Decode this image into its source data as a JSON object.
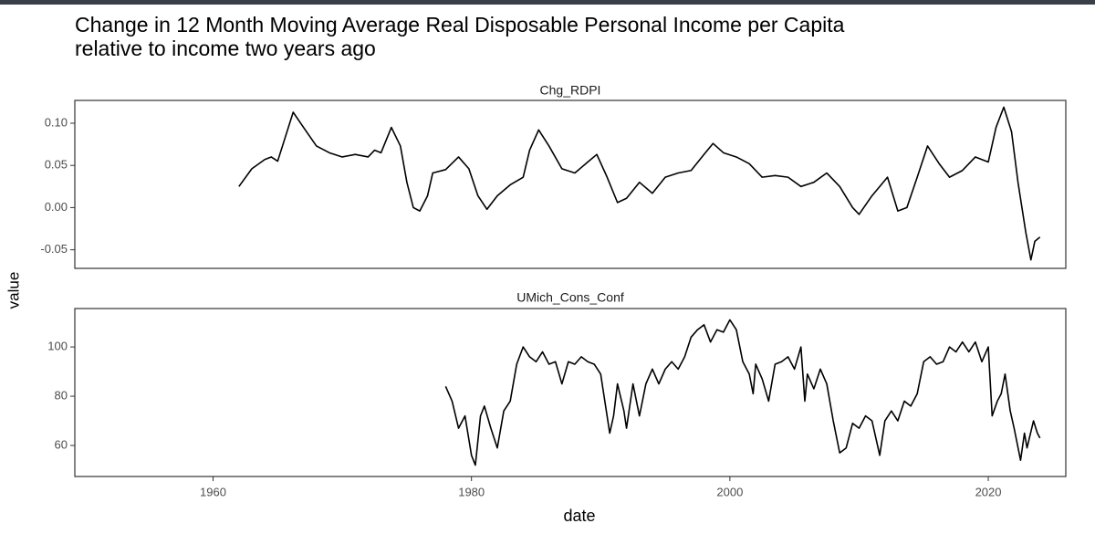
{
  "title": "Change in 12 Month Moving Average Real Disposable Personal Income per Capita",
  "subtitle": "relative to income two years ago",
  "y_label": "value",
  "chart_data": [
    {
      "type": "line",
      "title": "Chg_RDPI",
      "color": "#000000",
      "x": [
        1962.0,
        1963.0,
        1964.0,
        1964.5,
        1965.0,
        1966.2,
        1967.0,
        1968.0,
        1969.0,
        1970.0,
        1971.0,
        1972.0,
        1972.5,
        1973.0,
        1973.8,
        1974.5,
        1975.0,
        1975.5,
        1976.0,
        1976.6,
        1977.0,
        1978.0,
        1979.0,
        1979.8,
        1980.5,
        1981.2,
        1982.0,
        1983.0,
        1984.0,
        1984.5,
        1985.2,
        1986.0,
        1987.0,
        1988.0,
        1989.0,
        1989.7,
        1990.5,
        1991.3,
        1992.0,
        1993.0,
        1994.0,
        1995.0,
        1996.0,
        1997.0,
        1998.0,
        1998.7,
        1999.5,
        2000.5,
        2001.5,
        2002.5,
        2003.5,
        2004.5,
        2005.5,
        2006.5,
        2007.5,
        2008.5,
        2009.5,
        2010.0,
        2011.0,
        2012.2,
        2013.0,
        2013.7,
        2014.5,
        2015.3,
        2016.2,
        2017.0,
        2018.0,
        2019.0,
        2020.0,
        2020.6,
        2021.2,
        2021.8,
        2022.3,
        2022.9,
        2023.3,
        2023.6,
        2024.0
      ],
      "values": [
        0.025,
        0.046,
        0.057,
        0.06,
        0.055,
        0.113,
        0.095,
        0.073,
        0.065,
        0.06,
        0.063,
        0.06,
        0.068,
        0.065,
        0.095,
        0.073,
        0.03,
        0.0,
        -0.004,
        0.014,
        0.041,
        0.045,
        0.06,
        0.046,
        0.014,
        -0.002,
        0.014,
        0.027,
        0.036,
        0.068,
        0.092,
        0.073,
        0.046,
        0.041,
        0.054,
        0.063,
        0.036,
        0.006,
        0.011,
        0.03,
        0.017,
        0.036,
        0.041,
        0.044,
        0.063,
        0.076,
        0.065,
        0.06,
        0.052,
        0.036,
        0.038,
        0.036,
        0.025,
        0.03,
        0.041,
        0.025,
        0.0,
        -0.008,
        0.014,
        0.036,
        -0.004,
        0.0,
        0.036,
        0.073,
        0.052,
        0.036,
        0.044,
        0.06,
        0.054,
        0.095,
        0.119,
        0.09,
        0.03,
        -0.029,
        -0.062,
        -0.04,
        -0.035
      ],
      "xlim": [
        1949.3,
        2026.0
      ],
      "ylim": [
        -0.072,
        0.127
      ],
      "yticks": [
        {
          "value": 0.1,
          "label": "0.10"
        },
        0.05,
        {
          "value": 0,
          "label": "0.00"
        },
        -0.05
      ]
    },
    {
      "type": "line",
      "title": "UMich_Cons_Conf",
      "x_label": "date",
      "color": "#000000",
      "x": [
        1978.0,
        1978.5,
        1979.0,
        1979.5,
        1980.0,
        1980.3,
        1980.7,
        1981.0,
        1981.5,
        1982.0,
        1982.5,
        1983.0,
        1983.5,
        1984.0,
        1984.5,
        1985.0,
        1985.5,
        1986.0,
        1986.5,
        1987.0,
        1987.5,
        1988.0,
        1988.5,
        1989.0,
        1989.5,
        1990.0,
        1990.7,
        1991.0,
        1991.3,
        1991.8,
        1992.0,
        1992.5,
        1993.0,
        1993.5,
        1994.0,
        1994.5,
        1995.0,
        1995.5,
        1996.0,
        1996.5,
        1997.0,
        1997.5,
        1998.0,
        1998.5,
        1999.0,
        1999.5,
        2000.0,
        2000.5,
        2001.0,
        2001.5,
        2001.8,
        2002.0,
        2002.5,
        2003.0,
        2003.5,
        2004.0,
        2004.5,
        2005.0,
        2005.5,
        2005.8,
        2006.0,
        2006.5,
        2007.0,
        2007.5,
        2008.0,
        2008.5,
        2009.0,
        2009.5,
        2010.0,
        2010.5,
        2011.0,
        2011.6,
        2012.0,
        2012.5,
        2013.0,
        2013.5,
        2014.0,
        2014.5,
        2015.0,
        2015.5,
        2016.0,
        2016.5,
        2017.0,
        2017.5,
        2018.0,
        2018.5,
        2019.0,
        2019.5,
        2020.0,
        2020.3,
        2020.7,
        2021.0,
        2021.3,
        2021.7,
        2022.0,
        2022.5,
        2022.8,
        2023.0,
        2023.5,
        2023.8,
        2024.0
      ],
      "values": [
        84,
        78,
        67,
        72,
        56,
        52,
        72,
        76,
        67,
        59,
        74,
        78,
        93,
        100,
        96,
        94,
        98,
        93,
        94,
        85,
        94,
        93,
        96,
        94,
        93,
        89,
        65,
        72,
        85,
        74,
        67,
        85,
        72,
        85,
        91,
        85,
        91,
        94,
        91,
        96,
        104,
        107,
        109,
        102,
        107,
        106,
        111,
        107,
        94,
        89,
        81,
        93,
        87,
        78,
        93,
        94,
        96,
        91,
        100,
        78,
        89,
        83,
        91,
        85,
        70,
        57,
        59,
        69,
        67,
        72,
        70,
        56,
        70,
        74,
        70,
        78,
        76,
        81,
        94,
        96,
        93,
        94,
        100,
        98,
        102,
        98,
        102,
        94,
        100,
        72,
        78,
        81,
        89,
        74,
        67,
        54,
        65,
        59,
        70,
        65,
        63
      ],
      "xlim": [
        1949.3,
        2026.0
      ],
      "ylim": [
        47.4,
        115.6
      ],
      "yticks": [
        100,
        80,
        60
      ],
      "xticks": [
        1960,
        1980,
        2000,
        2020
      ]
    }
  ]
}
